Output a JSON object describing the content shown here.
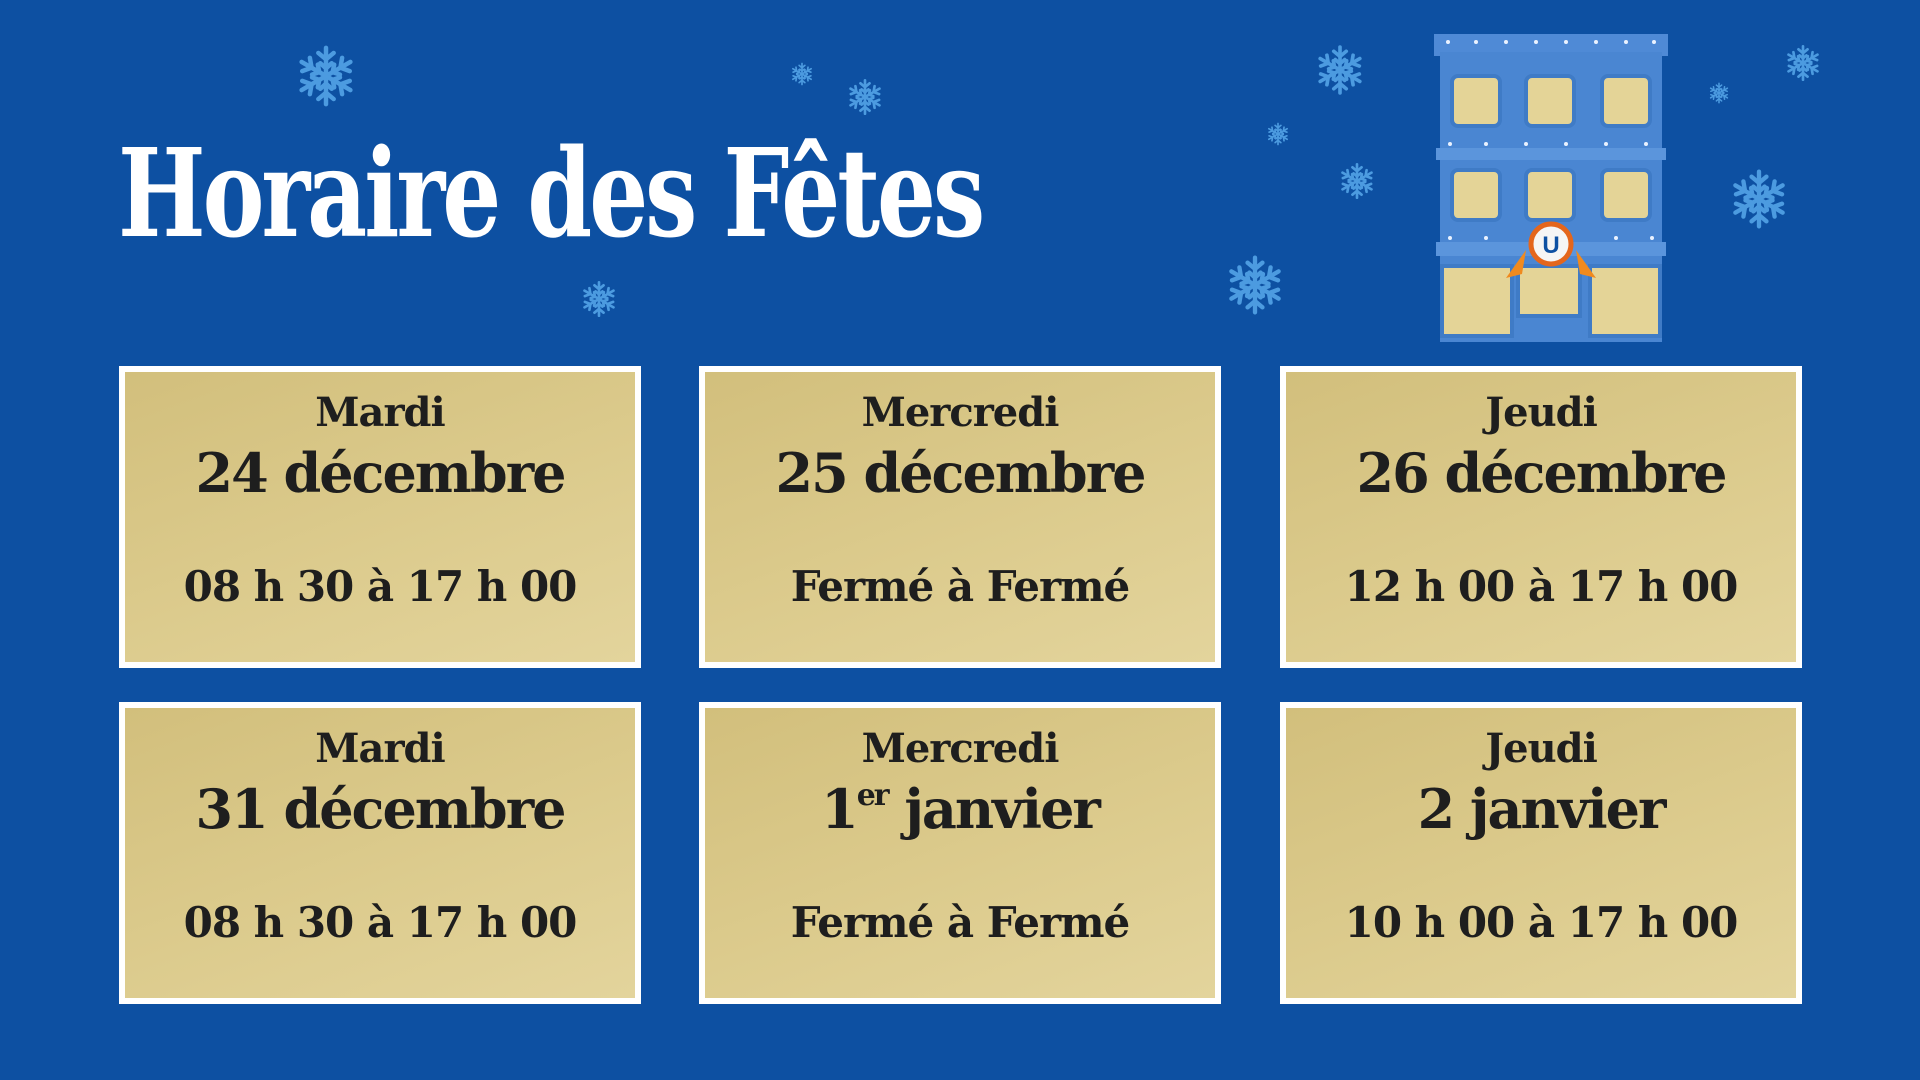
{
  "title": "Horaire des Fêtes",
  "colors": {
    "background": "#0d50a2",
    "card": "#d8c688",
    "card_border": "#ffffff",
    "snowflake": "#4c9be0"
  },
  "decorations": {
    "snowflake_icon": "snowflake-icon",
    "building_icon": "store-building-illustration",
    "logo": "U"
  },
  "schedule": [
    {
      "day": "Mardi",
      "date": "24 décembre",
      "hours": "08 h 30 à 17 h 00"
    },
    {
      "day": "Mercredi",
      "date": "25 décembre",
      "hours": "Fermé à Fermé"
    },
    {
      "day": "Jeudi",
      "date": "26 décembre",
      "hours": "12 h 00 à 17 h 00"
    },
    {
      "day": "Mardi",
      "date": "31 décembre",
      "hours": "08 h 30 à 17 h 00"
    },
    {
      "day": "Mercredi",
      "date_num": "1",
      "date_sup": "er",
      "date_rest": " janvier",
      "hours": "Fermé à Fermé"
    },
    {
      "day": "Jeudi",
      "date": "2 janvier",
      "hours": "10 h 00 à 17 h 00"
    }
  ]
}
